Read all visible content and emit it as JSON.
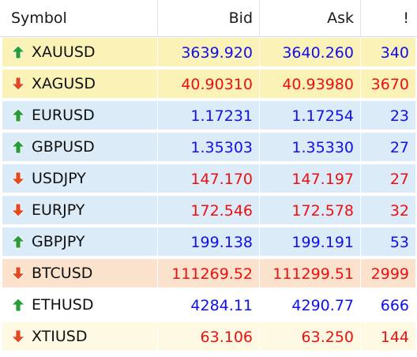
{
  "header": {
    "symbol": "Symbol",
    "bid": "Bid",
    "ask": "Ask",
    "spread": "!"
  },
  "colors": {
    "up": "#1010ee",
    "down": "#ee1010",
    "arrow_up": "#2a9d3a",
    "arrow_down": "#e04a1e",
    "bg_metal": "#fbf2b8",
    "bg_fx": "#dcebf8",
    "bg_crypto": "#fbe2cc",
    "bg_energy": "#fdf9e2",
    "bg_plain": "#ffffff"
  },
  "rows": [
    {
      "symbol": "XAUUSD",
      "bid": "3639.920",
      "ask": "3640.260",
      "spread": "340",
      "direction": "up",
      "bg": "bg_metal"
    },
    {
      "symbol": "XAGUSD",
      "bid": "40.90310",
      "ask": "40.93980",
      "spread": "3670",
      "direction": "down",
      "bg": "bg_metal"
    },
    {
      "symbol": "EURUSD",
      "bid": "1.17231",
      "ask": "1.17254",
      "spread": "23",
      "direction": "up",
      "bg": "bg_fx"
    },
    {
      "symbol": "GBPUSD",
      "bid": "1.35303",
      "ask": "1.35330",
      "spread": "27",
      "direction": "up",
      "bg": "bg_fx"
    },
    {
      "symbol": "USDJPY",
      "bid": "147.170",
      "ask": "147.197",
      "spread": "27",
      "direction": "down",
      "bg": "bg_fx"
    },
    {
      "symbol": "EURJPY",
      "bid": "172.546",
      "ask": "172.578",
      "spread": "32",
      "direction": "down",
      "bg": "bg_fx"
    },
    {
      "symbol": "GBPJPY",
      "bid": "199.138",
      "ask": "199.191",
      "spread": "53",
      "direction": "up",
      "bg": "bg_fx"
    },
    {
      "symbol": "BTCUSD",
      "bid": "111269.52",
      "ask": "111299.51",
      "spread": "2999",
      "direction": "down",
      "bg": "bg_crypto"
    },
    {
      "symbol": "ETHUSD",
      "bid": "4284.11",
      "ask": "4290.77",
      "spread": "666",
      "direction": "up",
      "bg": "bg_plain"
    },
    {
      "symbol": "XTIUSD",
      "bid": "63.106",
      "ask": "63.250",
      "spread": "144",
      "direction": "down",
      "bg": "bg_energy"
    }
  ]
}
